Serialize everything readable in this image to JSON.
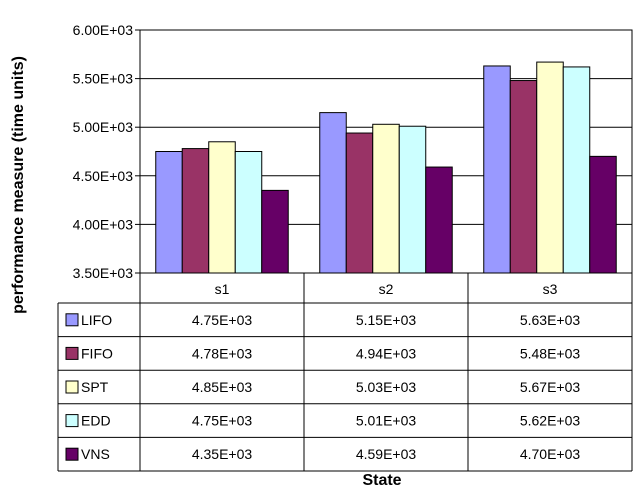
{
  "chart_data": {
    "type": "bar",
    "title": "",
    "xlabel": "State",
    "ylabel": "performance measure (time units)",
    "categories": [
      "s1",
      "s2",
      "s3"
    ],
    "ylim": [
      3500,
      6000
    ],
    "yticks": [
      3500,
      4000,
      4500,
      5000,
      5500,
      6000
    ],
    "ytick_labels": [
      "3.50E+03",
      "4.00E+03",
      "4.50E+03",
      "5.00E+03",
      "5.50E+03",
      "6.00E+03"
    ],
    "grid": "horizontal",
    "legend": "data-table-below",
    "series": [
      {
        "name": "LIFO",
        "color": "#9999ff",
        "values": [
          4750,
          5150,
          5630
        ],
        "labels": [
          "4.75E+03",
          "5.15E+03",
          "5.63E+03"
        ]
      },
      {
        "name": "FIFO",
        "color": "#993366",
        "values": [
          4780,
          4940,
          5480
        ],
        "labels": [
          "4.78E+03",
          "4.94E+03",
          "5.48E+03"
        ]
      },
      {
        "name": "SPT",
        "color": "#ffffcc",
        "values": [
          4850,
          5030,
          5670
        ],
        "labels": [
          "4.85E+03",
          "5.03E+03",
          "5.67E+03"
        ]
      },
      {
        "name": "EDD",
        "color": "#ccffff",
        "values": [
          4750,
          5010,
          5620
        ],
        "labels": [
          "4.75E+03",
          "5.01E+03",
          "5.62E+03"
        ]
      },
      {
        "name": "VNS",
        "color": "#660066",
        "values": [
          4350,
          4590,
          4700
        ],
        "labels": [
          "4.35E+03",
          "4.59E+03",
          "4.70E+03"
        ]
      }
    ]
  }
}
